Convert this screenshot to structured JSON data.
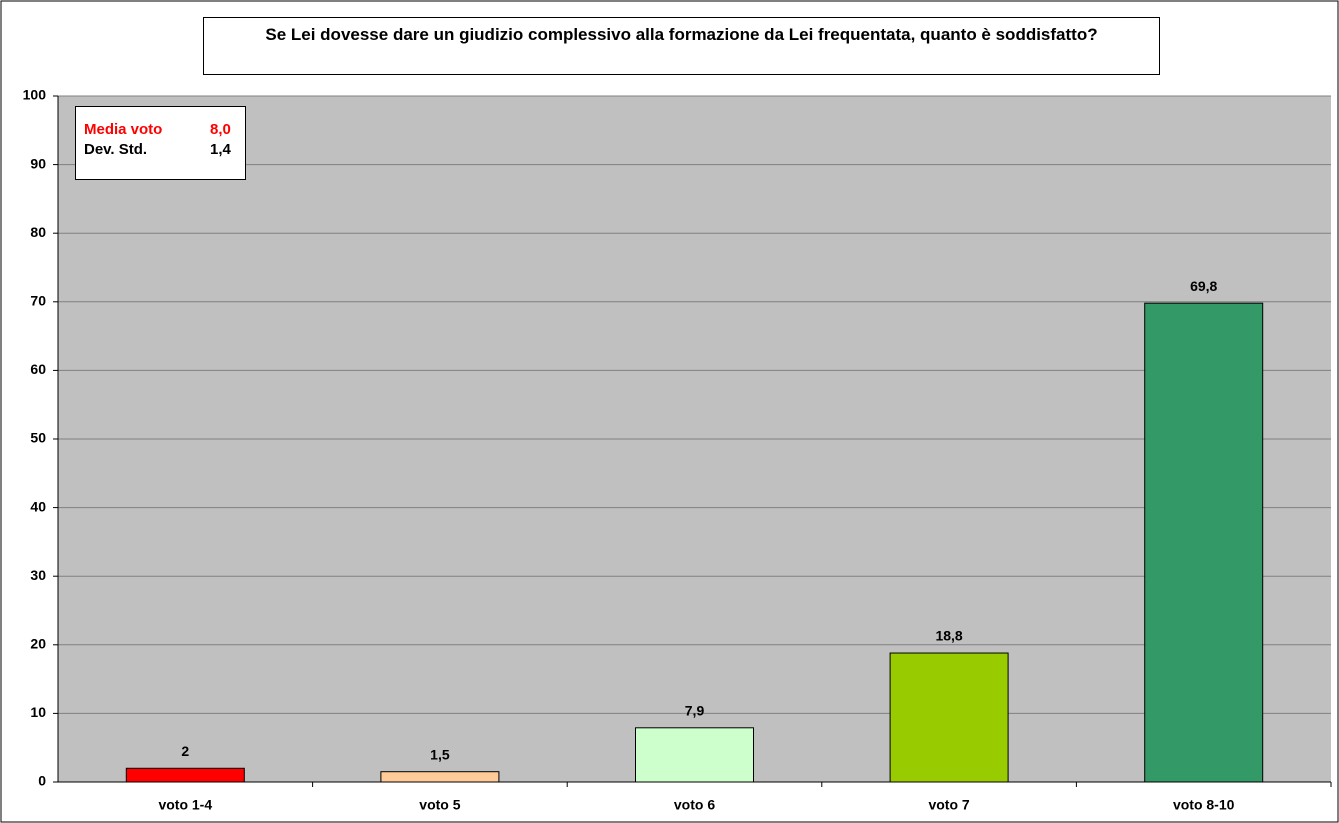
{
  "chart_data": {
    "type": "bar",
    "title": "Se Lei dovesse dare un giudizio complessivo alla formazione da Lei frequentata, quanto è soddisfatto?",
    "categories": [
      "voto 1-4",
      "voto 5",
      "voto 6",
      "voto 7",
      "voto 8-10"
    ],
    "values": [
      2,
      1.5,
      7.9,
      18.8,
      69.8
    ],
    "value_labels": [
      "2",
      "1,5",
      "7,9",
      "18,8",
      "69,8"
    ],
    "colors": [
      "#ff0000",
      "#ffcc99",
      "#ccffcc",
      "#99cc00",
      "#339966"
    ],
    "ylim": [
      0,
      100
    ],
    "yticks": [
      0,
      10,
      20,
      30,
      40,
      50,
      60,
      70,
      80,
      90,
      100
    ],
    "grid": true,
    "annotations": [
      {
        "label": "Media voto",
        "text": "8,0",
        "color": "#ff0000"
      },
      {
        "label": "Dev. Std.",
        "text": "1,4",
        "color": "#000000"
      }
    ]
  }
}
